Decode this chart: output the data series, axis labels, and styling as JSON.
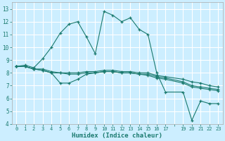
{
  "xlabel": "Humidex (Indice chaleur)",
  "bg_color": "#cceeff",
  "grid_color": "#ffffff",
  "line_color": "#1a7a6e",
  "ylim": [
    4,
    13.5
  ],
  "yticks": [
    4,
    5,
    6,
    7,
    8,
    9,
    10,
    11,
    12,
    13
  ],
  "xtick_labels": [
    "0",
    "1",
    "2",
    "3",
    "4",
    "5",
    "6",
    "7",
    "8",
    "9",
    "10",
    "11",
    "12",
    "13",
    "14",
    "15",
    "16",
    "17",
    "",
    "19",
    "20",
    "21",
    "22",
    "23"
  ],
  "n_xpoints": 24,
  "line1_x": [
    0,
    1,
    2,
    3,
    4,
    5,
    6,
    7,
    8,
    9,
    10,
    11,
    12,
    13,
    14,
    15,
    16,
    17,
    19,
    20,
    21,
    22,
    23
  ],
  "line1_y": [
    8.5,
    8.5,
    8.3,
    8.3,
    8.1,
    8.0,
    8.0,
    8.0,
    8.1,
    8.1,
    8.2,
    8.2,
    8.1,
    8.1,
    8.0,
    8.0,
    7.8,
    7.7,
    7.5,
    7.3,
    7.2,
    7.0,
    6.9
  ],
  "line2_x": [
    0,
    1,
    2,
    3,
    4,
    5,
    6,
    7,
    8,
    9,
    10,
    11,
    12,
    13,
    14,
    15,
    16,
    17,
    19,
    20,
    21,
    22,
    23
  ],
  "line2_y": [
    8.5,
    8.5,
    8.3,
    8.2,
    8.0,
    8.0,
    7.9,
    7.9,
    8.0,
    8.0,
    8.1,
    8.1,
    8.0,
    8.0,
    7.9,
    7.9,
    7.7,
    7.6,
    7.3,
    7.0,
    6.9,
    6.8,
    6.7
  ],
  "line3_x": [
    0,
    1,
    2,
    3,
    4,
    5,
    6,
    7,
    8,
    9,
    10,
    11,
    12,
    13,
    14,
    15,
    16,
    17,
    19,
    20,
    21,
    22,
    23
  ],
  "line3_y": [
    8.5,
    8.5,
    8.3,
    8.2,
    8.0,
    7.2,
    7.2,
    7.5,
    7.9,
    8.0,
    8.1,
    8.1,
    8.0,
    8.0,
    7.9,
    7.8,
    7.6,
    7.5,
    7.2,
    6.9,
    6.8,
    6.7,
    6.6
  ],
  "line4_x": [
    0,
    1,
    2,
    3,
    4,
    5,
    6,
    7,
    8,
    9,
    10,
    11,
    12,
    13,
    14,
    15,
    16,
    17,
    19,
    20,
    21,
    22,
    23
  ],
  "line4_y": [
    8.5,
    8.6,
    8.4,
    9.1,
    10.0,
    11.1,
    11.8,
    12.0,
    10.8,
    9.5,
    12.8,
    12.5,
    12.0,
    12.3,
    11.4,
    11.0,
    8.0,
    6.5,
    6.5,
    4.3,
    5.8,
    5.6,
    5.6
  ]
}
